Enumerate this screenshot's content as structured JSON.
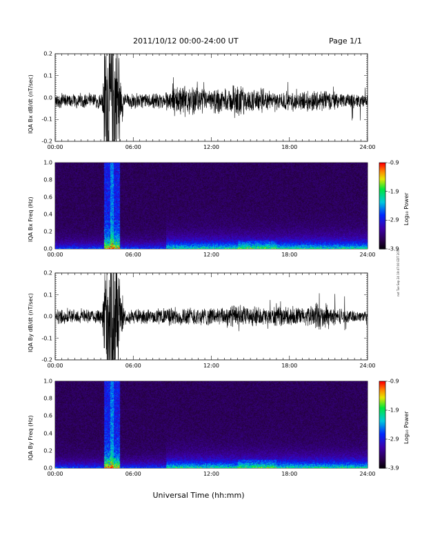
{
  "header": {
    "title": "2011/10/12  00:00-24:00 UT",
    "page": "Page 1/1"
  },
  "footer": {
    "xlabel": "Universal Time (hh:mm)"
  },
  "stamp": "not Tue Sep 24 19:47:00 EDT 2019",
  "colorbar": {
    "ticks": [
      "-0.9",
      "-1.9",
      "-2.9",
      "-3.9"
    ],
    "label": "Log₁₀ Power",
    "range": [
      -3.9,
      -0.9
    ]
  },
  "chart_data": [
    {
      "type": "line",
      "title": "",
      "ylabel": "IQA Bx dB/dt (nT/sec)",
      "xlabel": "",
      "x_ticks": [
        "00:00",
        "06:00",
        "12:00",
        "18:00",
        "24:00"
      ],
      "y_ticks": [
        "0.2",
        "0.1",
        "0.0",
        "-0.1",
        "-0.2"
      ],
      "xlim": [
        0,
        24
      ],
      "ylim": [
        -0.2,
        0.2
      ],
      "x_unit": "hours UT",
      "series": [
        {
          "values": [
            [
              0,
              -0.01
            ],
            [
              1,
              -0.02
            ],
            [
              2,
              -0.01
            ],
            [
              3,
              -0.02
            ],
            [
              3.8,
              0.2
            ],
            [
              4.0,
              -0.2
            ],
            [
              4.2,
              0.2
            ],
            [
              4.4,
              -0.2
            ],
            [
              4.6,
              0.2
            ],
            [
              4.8,
              -0.2
            ],
            [
              5.2,
              0.06
            ],
            [
              6,
              -0.02
            ],
            [
              7,
              -0.01
            ],
            [
              8,
              -0.03
            ],
            [
              8.7,
              0.06
            ],
            [
              9,
              -0.06
            ],
            [
              9.5,
              -0.14
            ],
            [
              10,
              0.09
            ],
            [
              10.5,
              0.11
            ],
            [
              11,
              -0.06
            ],
            [
              11.5,
              0.08
            ],
            [
              12,
              -0.08
            ],
            [
              12.6,
              0.1
            ],
            [
              13,
              0.06
            ],
            [
              13.6,
              0.09
            ],
            [
              13.9,
              -0.14
            ],
            [
              14.5,
              0.07
            ],
            [
              15,
              -0.05
            ],
            [
              15.5,
              0.09
            ],
            [
              16,
              -0.06
            ],
            [
              16.5,
              0.04
            ],
            [
              17,
              -0.04
            ],
            [
              17.5,
              0.06
            ],
            [
              18,
              -0.05
            ],
            [
              19,
              0.03
            ],
            [
              19.8,
              0.07
            ],
            [
              20.2,
              -0.07
            ],
            [
              21,
              0.05
            ],
            [
              22,
              -0.03
            ],
            [
              23,
              0.02
            ],
            [
              24,
              -0.01
            ]
          ]
        }
      ]
    },
    {
      "type": "heatmap",
      "title": "",
      "ylabel": "IQA Bx Freq (Hz)",
      "xlabel": "",
      "x_ticks": [
        "00:00",
        "06:00",
        "12:00",
        "18:00",
        "24:00"
      ],
      "y_ticks": [
        "1.0",
        "0.8",
        "0.6",
        "0.4",
        "0.2",
        "0.0"
      ],
      "xlim": [
        0,
        24
      ],
      "ylim": [
        0,
        1.0
      ],
      "colorbar_label": "Log₁₀ Power",
      "colorbar_range": [
        -3.9,
        -0.9
      ]
    },
    {
      "type": "line",
      "title": "",
      "ylabel": "IQA By dB/dt (nT/sec)",
      "xlabel": "",
      "x_ticks": [
        "00:00",
        "06:00",
        "12:00",
        "18:00",
        "24:00"
      ],
      "y_ticks": [
        "0.2",
        "0.1",
        "0.0",
        "-0.1",
        "-0.2"
      ],
      "xlim": [
        0,
        24
      ],
      "ylim": [
        -0.2,
        0.2
      ],
      "x_unit": "hours UT",
      "series": [
        {
          "values": [
            [
              0,
              0.05
            ],
            [
              0.2,
              -0.01
            ],
            [
              1,
              0.0
            ],
            [
              2,
              -0.01
            ],
            [
              3,
              0.0
            ],
            [
              3.8,
              0.2
            ],
            [
              4.0,
              -0.2
            ],
            [
              4.2,
              0.2
            ],
            [
              4.4,
              -0.2
            ],
            [
              4.6,
              0.2
            ],
            [
              4.8,
              -0.2
            ],
            [
              5.2,
              0.08
            ],
            [
              6,
              -0.02
            ],
            [
              7,
              0.02
            ],
            [
              8,
              -0.03
            ],
            [
              9,
              0.06
            ],
            [
              10,
              -0.05
            ],
            [
              11,
              0.06
            ],
            [
              12,
              -0.04
            ],
            [
              13,
              0.05
            ],
            [
              13.8,
              -0.08
            ],
            [
              14.5,
              0.05
            ],
            [
              15,
              -0.06
            ],
            [
              15.5,
              0.05
            ],
            [
              16,
              -0.04
            ],
            [
              17,
              0.06
            ],
            [
              18,
              -0.03
            ],
            [
              19,
              0.06
            ],
            [
              19.5,
              -0.05
            ],
            [
              20,
              0.09
            ],
            [
              20.3,
              -0.11
            ],
            [
              21,
              0.05
            ],
            [
              22,
              -0.02
            ],
            [
              23,
              0.01
            ],
            [
              24,
              0.0
            ]
          ]
        }
      ]
    },
    {
      "type": "heatmap",
      "title": "",
      "ylabel": "IQA By Freq (Hz)",
      "xlabel": "",
      "x_ticks": [
        "00:00",
        "06:00",
        "12:00",
        "18:00",
        "24:00"
      ],
      "y_ticks": [
        "1.0",
        "0.8",
        "0.6",
        "0.4",
        "0.2",
        "0.0"
      ],
      "xlim": [
        0,
        24
      ],
      "ylim": [
        0,
        1.0
      ],
      "colorbar_label": "Log₁₀ Power",
      "colorbar_range": [
        -3.9,
        -0.9
      ]
    }
  ]
}
